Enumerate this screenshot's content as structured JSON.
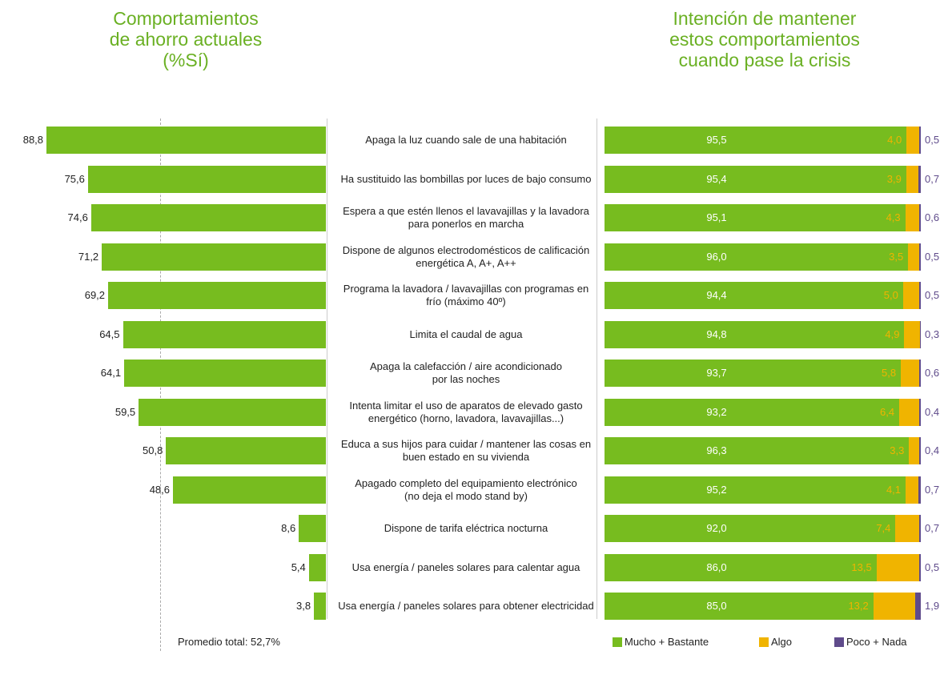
{
  "chart_data": [
    {
      "type": "bar",
      "orientation": "horizontal-left",
      "title": "Comportamientos\nde ahorro actuales\n(%Sí)",
      "categories": [
        "Apaga la luz cuando sale de una habitación",
        "Ha sustituido las bombillas por luces de bajo consumo",
        "Espera a que estén llenos el lavavajillas y la lavadora\npara ponerlos en marcha",
        "Dispone de algunos electrodomésticos de calificación\nenergética A, A+, A++",
        "Programa la lavadora / lavavajillas con programas en\nfrío (máximo 40º)",
        "Limita el caudal de agua",
        "Apaga la calefacción / aire acondicionado\npor las noches",
        "Intenta limitar el uso de aparatos de elevado gasto\nenergético (horno, lavadora, lavavajillas...)",
        "Educa a sus hijos para cuidar / mantener las cosas en\nbuen estado en su vivienda",
        "Apagado completo del equipamiento electrónico\n(no deja el modo stand by)",
        "Dispone de tarifa eléctrica nocturna",
        "Usa energía / paneles solares para calentar agua",
        "Usa energía / paneles solares para obtener electricidad"
      ],
      "values": [
        88.8,
        75.6,
        74.6,
        71.2,
        69.2,
        64.5,
        64.1,
        59.5,
        50.8,
        48.6,
        8.6,
        5.4,
        3.8
      ],
      "value_labels": [
        "88,8",
        "75,6",
        "74,6",
        "71,2",
        "69,2",
        "64,5",
        "64,1",
        "59,5",
        "50,8",
        "48,6",
        "8,6",
        "5,4",
        "3,8"
      ],
      "color": "#77bc1f",
      "xlim": [
        0,
        100
      ],
      "average": {
        "value": 52.7,
        "label": "Promedio total: 52,7%"
      }
    },
    {
      "type": "stacked-bar",
      "title": "Intención de mantener\nestos comportamientos\ncuando pase la crisis",
      "xlim": [
        0,
        100
      ],
      "series": [
        {
          "name": "Mucho + Bastante",
          "color": "#77bc1f",
          "values": [
            95.5,
            95.4,
            95.1,
            96.0,
            94.4,
            94.8,
            93.7,
            93.2,
            96.3,
            95.2,
            92.0,
            86.0,
            85.0
          ],
          "value_labels": [
            "95,5",
            "95,4",
            "95,1",
            "96,0",
            "94,4",
            "94,8",
            "93,7",
            "93,2",
            "96,3",
            "95,2",
            "92,0",
            "86,0",
            "85,0"
          ]
        },
        {
          "name": "Algo",
          "color": "#f0b400",
          "values": [
            4.0,
            3.9,
            4.3,
            3.5,
            5.0,
            4.9,
            5.8,
            6.4,
            3.3,
            4.1,
            7.4,
            13.5,
            13.2
          ],
          "value_labels": [
            "4,0",
            "3,9",
            "4,3",
            "3,5",
            "5,0",
            "4,9",
            "5,8",
            "6,4",
            "3,3",
            "4,1",
            "7,4",
            "13,5",
            "13,2"
          ]
        },
        {
          "name": "Poco + Nada",
          "color": "#5f4b8b",
          "values": [
            0.5,
            0.7,
            0.6,
            0.5,
            0.5,
            0.3,
            0.6,
            0.4,
            0.4,
            0.7,
            0.7,
            0.5,
            1.9
          ],
          "value_labels": [
            "0,5",
            "0,7",
            "0,6",
            "0,5",
            "0,5",
            "0,3",
            "0,6",
            "0,4",
            "0,4",
            "0,7",
            "0,7",
            "0,5",
            "1,9"
          ]
        }
      ]
    }
  ]
}
